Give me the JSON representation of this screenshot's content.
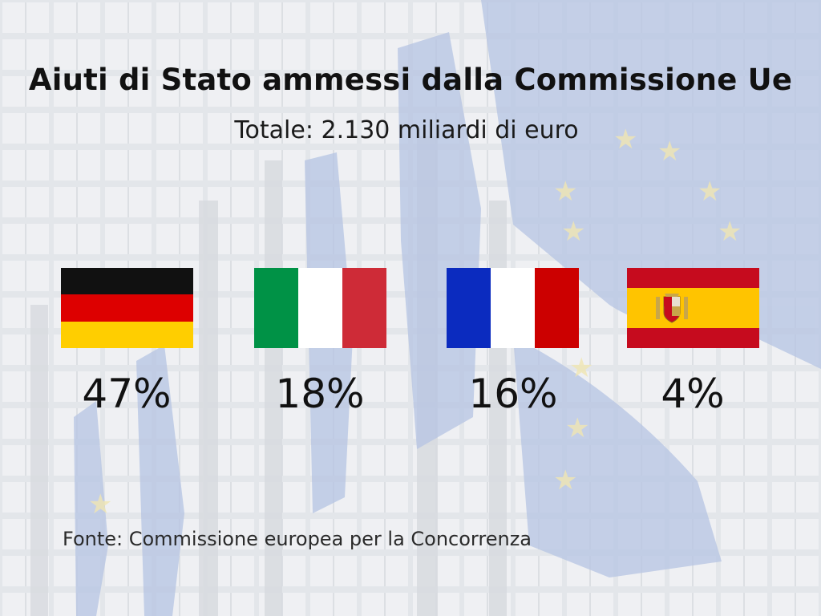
{
  "header": {
    "title": "Aiuti di Stato ammessi dalla Commissione Ue",
    "subtitle": "Totale: 2.130 miliardi di euro"
  },
  "countries": [
    {
      "flag": "germany-flag",
      "share_pct": 47,
      "label": "47%",
      "colors": [
        "#111111",
        "#dd0000",
        "#ffce00"
      ]
    },
    {
      "flag": "italy-flag",
      "share_pct": 18,
      "label": "18%",
      "colors": [
        "#009246",
        "#ffffff",
        "#ce2b37"
      ]
    },
    {
      "flag": "france-flag",
      "share_pct": 16,
      "label": "16%",
      "colors": [
        "#0b2bbf",
        "#ffffff",
        "#cc0000"
      ]
    },
    {
      "flag": "spain-flag",
      "share_pct": 4,
      "label": "4%",
      "colors": [
        "#c60b1e",
        "#ffc400",
        "#c60b1e"
      ]
    }
  ],
  "footer": {
    "source": "Fonte: Commissione europea per la Concorrenza"
  }
}
